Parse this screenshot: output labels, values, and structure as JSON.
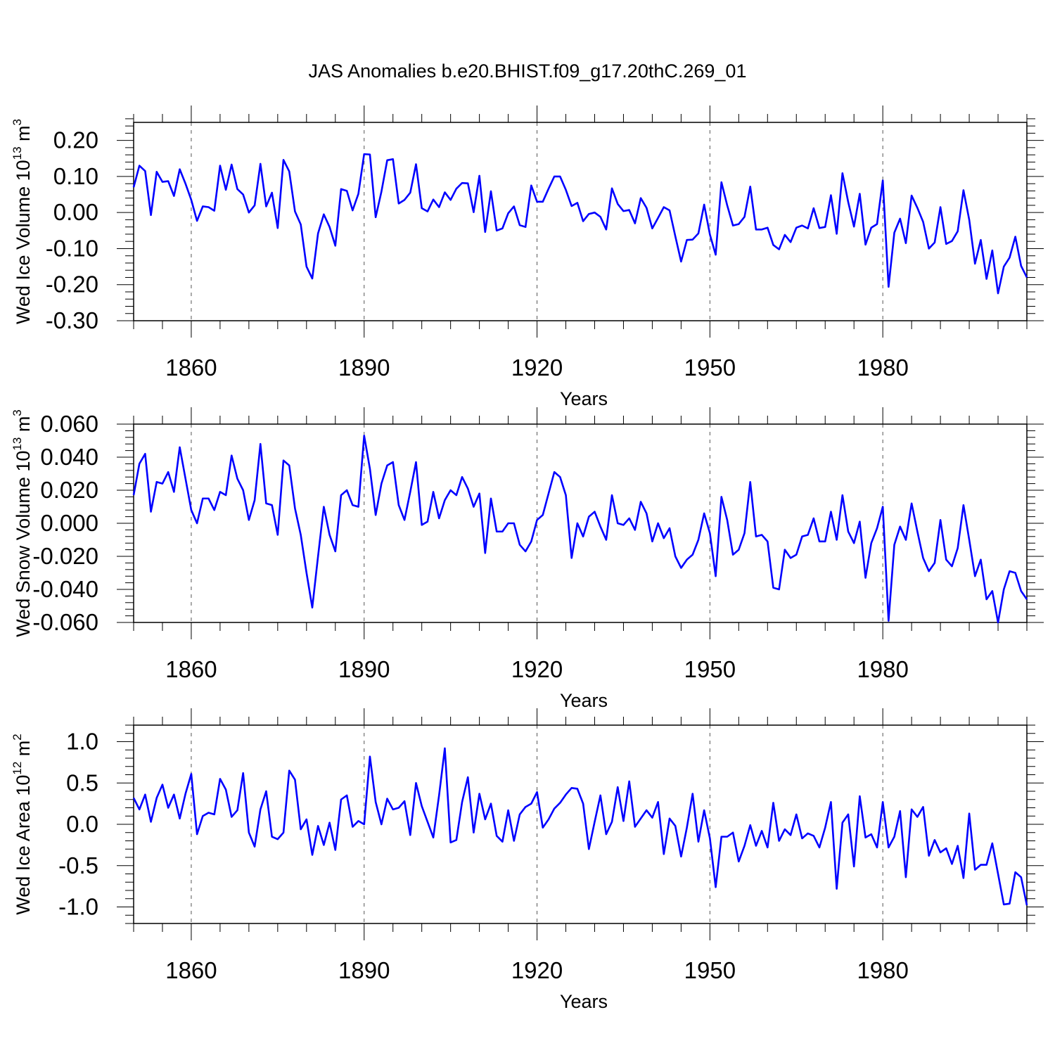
{
  "title": "JAS Anomalies b.e20.BHIST.f09_g17.20thC.269_01",
  "colors": {
    "series": "#0000ff",
    "axis": "#000000",
    "grid": "#555555"
  },
  "chart_data": [
    {
      "type": "line",
      "title": "JAS Anomalies b.e20.BHIST.f09_g17.20thC.269_01",
      "ylabel": {
        "main": "Wed Ice Volume 10",
        "exp": "13",
        "unit": " m",
        "unit_exp": "3"
      },
      "xlabel": "Years",
      "xlim": [
        1850,
        2005
      ],
      "ylim": [
        -0.3,
        0.25
      ],
      "y_ticks": [
        0.2,
        0.1,
        0.0,
        -0.1,
        -0.2,
        -0.3
      ],
      "y_tick_labels": [
        "0.20",
        "0.10",
        "0.00",
        "-0.10",
        "-0.20",
        "-0.30"
      ],
      "y_minor_step": 0.02,
      "x_ticks": [
        1860,
        1890,
        1920,
        1950,
        1980
      ],
      "x_tick_labels": [
        "1860",
        "1890",
        "1920",
        "1950",
        "1980"
      ],
      "x_minor_step": 5,
      "x_start": 1850,
      "values": [
        0.07,
        0.13,
        0.115,
        -0.007,
        0.113,
        0.085,
        0.087,
        0.046,
        0.12,
        0.08,
        0.035,
        -0.023,
        0.017,
        0.015,
        0.005,
        0.13,
        0.063,
        0.133,
        0.065,
        0.05,
        0.0,
        0.02,
        0.135,
        0.017,
        0.055,
        -0.043,
        0.146,
        0.114,
        0.003,
        -0.033,
        -0.15,
        -0.183,
        -0.058,
        -0.005,
        -0.04,
        -0.092,
        0.065,
        0.06,
        0.006,
        0.052,
        0.162,
        0.161,
        -0.013,
        0.058,
        0.145,
        0.148,
        0.025,
        0.035,
        0.055,
        0.134,
        0.012,
        0.003,
        0.036,
        0.015,
        0.056,
        0.035,
        0.066,
        0.082,
        0.081,
        0.001,
        0.102,
        -0.054,
        0.059,
        -0.05,
        -0.044,
        -0.002,
        0.017,
        -0.035,
        -0.04,
        0.075,
        0.03,
        0.03,
        0.066,
        0.1,
        0.1,
        0.063,
        0.018,
        0.027,
        -0.024,
        -0.004,
        0.0,
        -0.012,
        -0.047,
        0.067,
        0.024,
        0.004,
        0.007,
        -0.03,
        0.04,
        0.013,
        -0.044,
        -0.015,
        0.015,
        0.006,
        -0.066,
        -0.136,
        -0.076,
        -0.075,
        -0.058,
        0.022,
        -0.061,
        -0.117,
        0.084,
        0.02,
        -0.036,
        -0.032,
        -0.012,
        0.072,
        -0.047,
        -0.047,
        -0.042,
        -0.09,
        -0.102,
        -0.062,
        -0.082,
        -0.042,
        -0.036,
        -0.044,
        0.012,
        -0.043,
        -0.04,
        0.048,
        -0.059,
        0.109,
        0.029,
        -0.039,
        0.052,
        -0.089,
        -0.042,
        -0.032,
        0.089,
        -0.206,
        -0.056,
        -0.017,
        -0.085,
        0.047,
        0.013,
        -0.026,
        -0.1,
        -0.083,
        0.015,
        -0.087,
        -0.079,
        -0.052,
        0.062,
        -0.02,
        -0.142,
        -0.076,
        -0.184,
        -0.105,
        -0.224,
        -0.15,
        -0.125,
        -0.067,
        -0.148,
        -0.18
      ]
    },
    {
      "type": "line",
      "ylabel": {
        "main": "Wed Snow Volume 10",
        "exp": "13",
        "unit": " m",
        "unit_exp": "3"
      },
      "xlabel": "Years",
      "xlim": [
        1850,
        2005
      ],
      "ylim": [
        -0.06,
        0.06
      ],
      "y_ticks": [
        0.06,
        0.04,
        0.02,
        0.0,
        -0.02,
        -0.04,
        -0.06
      ],
      "y_tick_labels": [
        "0.060",
        "0.040",
        "0.020",
        "0.000",
        "-0.020",
        "-0.040",
        "-0.060"
      ],
      "y_minor_step": 0.004,
      "x_ticks": [
        1860,
        1890,
        1920,
        1950,
        1980
      ],
      "x_tick_labels": [
        "1860",
        "1890",
        "1920",
        "1950",
        "1980"
      ],
      "x_minor_step": 5,
      "x_start": 1850,
      "values": [
        0.017,
        0.036,
        0.042,
        0.007,
        0.025,
        0.024,
        0.031,
        0.019,
        0.046,
        0.027,
        0.008,
        0.0,
        0.015,
        0.015,
        0.008,
        0.019,
        0.017,
        0.041,
        0.027,
        0.02,
        0.002,
        0.014,
        0.048,
        0.012,
        0.011,
        -0.007,
        0.038,
        0.035,
        0.009,
        -0.007,
        -0.03,
        -0.051,
        -0.02,
        0.01,
        -0.007,
        -0.017,
        0.017,
        0.02,
        0.011,
        0.01,
        0.053,
        0.033,
        0.005,
        0.024,
        0.035,
        0.037,
        0.011,
        0.002,
        0.019,
        0.037,
        -0.001,
        0.001,
        0.019,
        0.003,
        0.014,
        0.02,
        0.017,
        0.028,
        0.021,
        0.01,
        0.018,
        -0.018,
        0.015,
        -0.005,
        -0.005,
        0.0,
        0.0,
        -0.013,
        -0.017,
        -0.011,
        0.002,
        0.005,
        0.018,
        0.031,
        0.028,
        0.017,
        -0.021,
        0.0,
        -0.008,
        0.004,
        0.007,
        -0.002,
        -0.01,
        0.017,
        0.0,
        -0.001,
        0.003,
        -0.004,
        0.013,
        0.006,
        -0.011,
        0.0,
        -0.009,
        -0.003,
        -0.02,
        -0.027,
        -0.022,
        -0.019,
        -0.01,
        0.006,
        -0.006,
        -0.032,
        0.016,
        0.002,
        -0.019,
        -0.016,
        -0.006,
        0.025,
        -0.008,
        -0.007,
        -0.011,
        -0.039,
        -0.04,
        -0.016,
        -0.021,
        -0.019,
        -0.008,
        -0.007,
        0.003,
        -0.011,
        -0.011,
        0.007,
        -0.01,
        0.017,
        -0.005,
        -0.012,
        0.001,
        -0.033,
        -0.012,
        -0.003,
        0.01,
        -0.059,
        -0.013,
        -0.002,
        -0.01,
        0.012,
        -0.005,
        -0.021,
        -0.029,
        -0.024,
        0.002,
        -0.022,
        -0.026,
        -0.015,
        0.011,
        -0.01,
        -0.032,
        -0.022,
        -0.046,
        -0.041,
        -0.06,
        -0.04,
        -0.029,
        -0.03,
        -0.041,
        -0.046
      ]
    },
    {
      "type": "line",
      "ylabel": {
        "main": "Wed Ice Area 10",
        "exp": "12",
        "unit": " m",
        "unit_exp": "2"
      },
      "xlabel": "Years",
      "xlim": [
        1850,
        2005
      ],
      "ylim": [
        -1.2,
        1.2
      ],
      "y_ticks": [
        1.0,
        0.5,
        0.0,
        -0.5,
        -1.0
      ],
      "y_tick_labels": [
        "1.0",
        "0.5",
        "0.0",
        "-0.5",
        "-1.0"
      ],
      "y_minor_step": 0.1,
      "x_ticks": [
        1860,
        1890,
        1920,
        1950,
        1980
      ],
      "x_tick_labels": [
        "1860",
        "1890",
        "1920",
        "1950",
        "1980"
      ],
      "x_minor_step": 5,
      "x_start": 1850,
      "values": [
        0.32,
        0.18,
        0.36,
        0.03,
        0.32,
        0.48,
        0.2,
        0.36,
        0.07,
        0.37,
        0.61,
        -0.12,
        0.1,
        0.14,
        0.12,
        0.55,
        0.42,
        0.09,
        0.17,
        0.62,
        -0.1,
        -0.27,
        0.18,
        0.4,
        -0.15,
        -0.18,
        -0.1,
        0.65,
        0.54,
        -0.06,
        0.06,
        -0.37,
        -0.02,
        -0.25,
        0.02,
        -0.31,
        0.3,
        0.35,
        -0.03,
        0.04,
        0.0,
        0.82,
        0.27,
        0.0,
        0.31,
        0.18,
        0.2,
        0.28,
        -0.13,
        0.5,
        0.22,
        0.03,
        -0.16,
        0.35,
        0.92,
        -0.22,
        -0.19,
        0.27,
        0.57,
        -0.1,
        0.37,
        0.06,
        0.25,
        -0.14,
        -0.21,
        0.17,
        -0.2,
        0.12,
        0.21,
        0.25,
        0.39,
        -0.04,
        0.06,
        0.19,
        0.26,
        0.36,
        0.44,
        0.43,
        0.25,
        -0.3,
        0.03,
        0.35,
        -0.12,
        0.03,
        0.45,
        0.04,
        0.52,
        -0.03,
        0.07,
        0.17,
        0.08,
        0.27,
        -0.36,
        0.07,
        -0.02,
        -0.39,
        -0.04,
        0.37,
        -0.21,
        0.17,
        -0.17,
        -0.76,
        -0.15,
        -0.15,
        -0.1,
        -0.45,
        -0.26,
        -0.01,
        -0.26,
        -0.08,
        -0.28,
        0.26,
        -0.2,
        -0.06,
        -0.13,
        0.12,
        -0.17,
        -0.11,
        -0.14,
        -0.28,
        -0.04,
        0.27,
        -0.78,
        0.02,
        0.12,
        -0.51,
        0.34,
        -0.16,
        -0.12,
        -0.28,
        0.27,
        -0.28,
        -0.15,
        0.16,
        -0.64,
        0.18,
        0.09,
        0.21,
        -0.38,
        -0.19,
        -0.34,
        -0.29,
        -0.48,
        -0.26,
        -0.65,
        0.13,
        -0.55,
        -0.49,
        -0.49,
        -0.23,
        -0.6,
        -0.97,
        -0.96,
        -0.58,
        -0.64,
        -0.98
      ]
    }
  ]
}
